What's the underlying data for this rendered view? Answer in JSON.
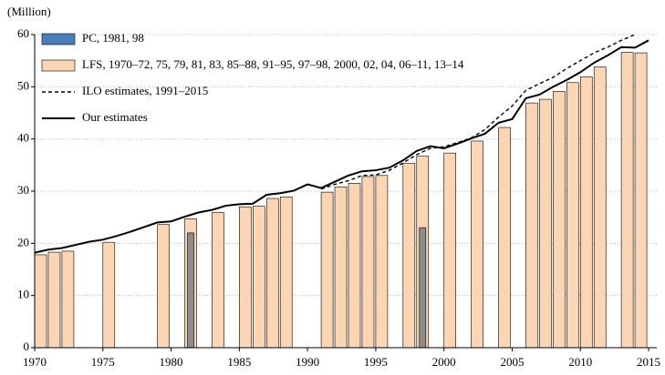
{
  "chart_data": {
    "type": "bar",
    "y_label": "(Million)",
    "xlim": [
      1970,
      2015.6
    ],
    "xticks": [
      1970,
      1975,
      1980,
      1985,
      1990,
      1995,
      2000,
      2005,
      2010,
      2015
    ],
    "ylim": [
      0,
      60
    ],
    "yticks": [
      0,
      10,
      20,
      30,
      40,
      50,
      60
    ],
    "grid": true,
    "legend": "upper left",
    "series": [
      {
        "name": "PC, 1981, 98",
        "type": "bar",
        "color": "#8c8c8c",
        "legend_color": "#4a7ebb",
        "x": [
          1981,
          1998
        ],
        "values": [
          22.0,
          23.0
        ]
      },
      {
        "name": "LFS, 1970–72, 75, 79, 81, 83, 85–88, 91–95, 97–98, 2000, 02, 04, 06–11, 13–14",
        "type": "bar",
        "color": "#fcd5b5",
        "x": [
          1970,
          1971,
          1972,
          1975,
          1979,
          1981,
          1983,
          1985,
          1986,
          1987,
          1988,
          1991,
          1992,
          1993,
          1994,
          1995,
          1997,
          1998,
          2000,
          2002,
          2004,
          2006,
          2007,
          2008,
          2009,
          2010,
          2011,
          2013,
          2014
        ],
        "values": [
          17.8,
          18.3,
          18.5,
          20.2,
          23.6,
          24.7,
          25.9,
          27.0,
          27.1,
          28.6,
          28.9,
          29.8,
          30.8,
          31.5,
          32.8,
          33.0,
          35.3,
          36.7,
          37.3,
          39.6,
          42.2,
          46.9,
          47.6,
          49.1,
          50.8,
          51.9,
          53.8,
          56.6,
          56.5
        ]
      },
      {
        "name": "ILO estimates, 1991–2015",
        "type": "line",
        "dashed": true,
        "color": "#000000",
        "x": [
          1991,
          1992,
          1993,
          1994,
          1995,
          1996,
          1997,
          1998,
          1999,
          2000,
          2001,
          2002,
          2003,
          2004,
          2005,
          2006,
          2007,
          2008,
          2009,
          2010,
          2011,
          2012,
          2013,
          2014,
          2015
        ],
        "values": [
          30.4,
          31.3,
          32.0,
          33.0,
          33.1,
          34.0,
          35.4,
          37.0,
          38.2,
          38.5,
          39.3,
          40.2,
          41.8,
          44.2,
          46.3,
          49.3,
          50.6,
          51.8,
          53.5,
          55.0,
          56.5,
          57.6,
          58.9,
          60.0,
          61.2
        ]
      },
      {
        "name": "Our estimates",
        "type": "line",
        "dashed": false,
        "color": "#000000",
        "x": [
          1970,
          1971,
          1972,
          1973,
          1974,
          1975,
          1976,
          1977,
          1978,
          1979,
          1980,
          1981,
          1982,
          1983,
          1984,
          1985,
          1986,
          1987,
          1988,
          1989,
          1990,
          1991,
          1992,
          1993,
          1994,
          1995,
          1996,
          1997,
          1998,
          1999,
          2000,
          2001,
          2002,
          2003,
          2004,
          2005,
          2006,
          2007,
          2008,
          2009,
          2010,
          2011,
          2012,
          2013,
          2014,
          2015
        ],
        "values": [
          18.2,
          18.8,
          19.1,
          19.7,
          20.3,
          20.7,
          21.4,
          22.2,
          23.1,
          24.0,
          24.2,
          25.1,
          25.9,
          26.4,
          27.2,
          27.5,
          27.6,
          29.3,
          29.6,
          30.1,
          31.3,
          30.6,
          31.8,
          33.0,
          33.8,
          34.0,
          34.5,
          35.9,
          37.7,
          38.6,
          38.2,
          39.1,
          40.1,
          41.0,
          43.1,
          43.8,
          47.8,
          48.5,
          50.0,
          51.3,
          52.8,
          54.6,
          56.0,
          57.6,
          57.5,
          58.9
        ]
      }
    ]
  }
}
